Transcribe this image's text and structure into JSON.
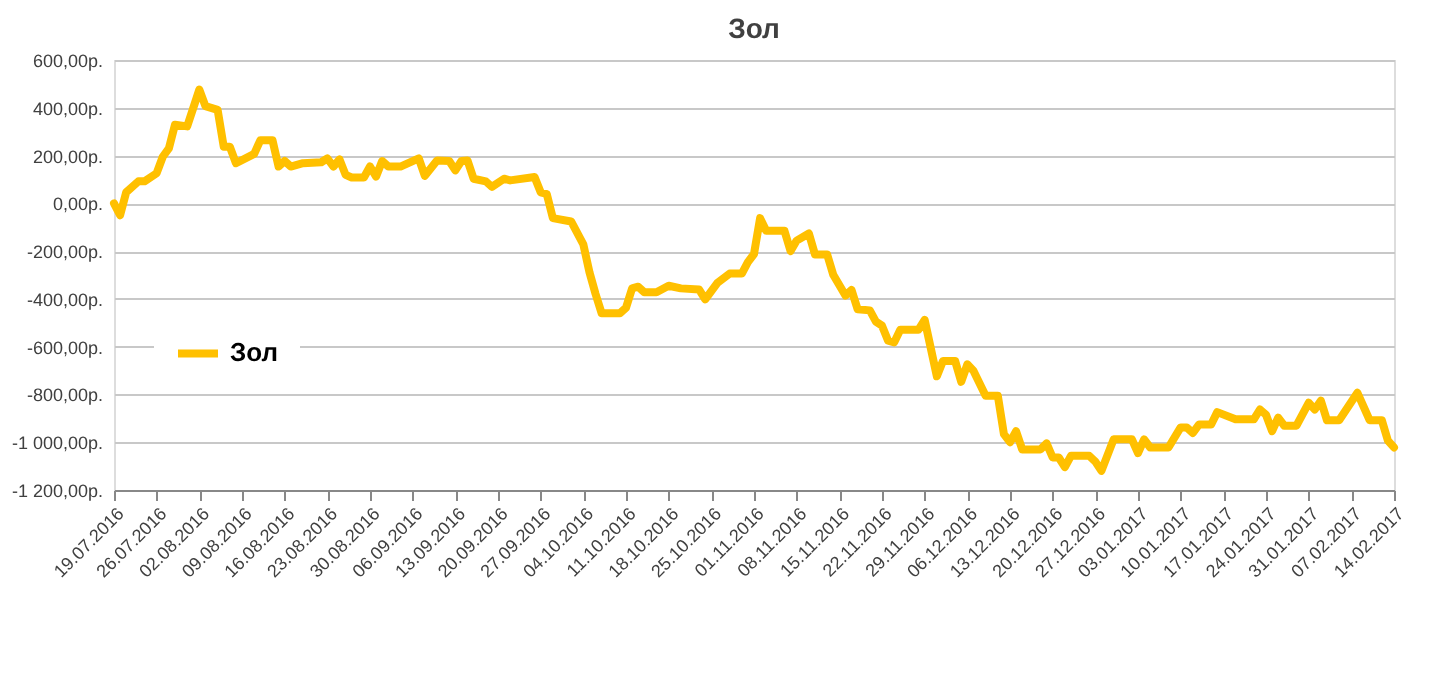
{
  "chart_data": {
    "type": "line",
    "title": "Зол",
    "x": [
      "2016-07-19",
      "2016-07-20",
      "2016-07-21",
      "2016-07-23",
      "2016-07-24",
      "2016-07-26",
      "2016-07-27",
      "2016-07-28",
      "2016-07-29",
      "2016-07-31",
      "2016-08-02",
      "2016-08-03",
      "2016-08-05",
      "2016-08-06",
      "2016-08-07",
      "2016-08-08",
      "2016-08-11",
      "2016-08-12",
      "2016-08-14",
      "2016-08-15",
      "2016-08-16",
      "2016-08-17",
      "2016-08-19",
      "2016-08-22",
      "2016-08-23",
      "2016-08-24",
      "2016-08-25",
      "2016-08-26",
      "2016-08-27",
      "2016-08-29",
      "2016-08-30",
      "2016-08-31",
      "2016-09-01",
      "2016-09-02",
      "2016-09-04",
      "2016-09-07",
      "2016-09-08",
      "2016-09-10",
      "2016-09-12",
      "2016-09-13",
      "2016-09-14",
      "2016-09-15",
      "2016-09-16",
      "2016-09-18",
      "2016-09-19",
      "2016-09-21",
      "2016-09-22",
      "2016-09-26",
      "2016-09-27",
      "2016-09-28",
      "2016-09-29",
      "2016-10-02",
      "2016-10-04",
      "2016-10-05",
      "2016-10-06",
      "2016-10-07",
      "2016-10-10",
      "2016-10-11",
      "2016-10-12",
      "2016-10-13",
      "2016-10-14",
      "2016-10-16",
      "2016-10-18",
      "2016-10-20",
      "2016-10-23",
      "2016-10-24",
      "2016-10-26",
      "2016-10-28",
      "2016-10-30",
      "2016-10-31",
      "2016-11-01",
      "2016-11-02",
      "2016-11-03",
      "2016-11-06",
      "2016-11-07",
      "2016-11-08",
      "2016-11-10",
      "2016-11-11",
      "2016-11-13",
      "2016-11-14",
      "2016-11-16",
      "2016-11-17",
      "2016-11-18",
      "2016-11-20",
      "2016-11-21",
      "2016-11-22",
      "2016-11-23",
      "2016-11-24",
      "2016-11-25",
      "2016-11-28",
      "2016-11-29",
      "2016-12-01",
      "2016-12-02",
      "2016-12-04",
      "2016-12-05",
      "2016-12-06",
      "2016-12-07",
      "2016-12-09",
      "2016-12-11",
      "2016-12-12",
      "2016-12-13",
      "2016-12-14",
      "2016-12-15",
      "2016-12-18",
      "2016-12-19",
      "2016-12-20",
      "2016-12-21",
      "2016-12-22",
      "2016-12-23",
      "2016-12-26",
      "2016-12-27",
      "2016-12-28",
      "2016-12-30",
      "2017-01-02",
      "2017-01-03",
      "2017-01-04",
      "2017-01-05",
      "2017-01-08",
      "2017-01-10",
      "2017-01-11",
      "2017-01-12",
      "2017-01-13",
      "2017-01-15",
      "2017-01-16",
      "2017-01-19",
      "2017-01-22",
      "2017-01-23",
      "2017-01-24",
      "2017-01-25",
      "2017-01-26",
      "2017-01-27",
      "2017-01-29",
      "2017-01-31",
      "2017-02-01",
      "2017-02-02",
      "2017-02-03",
      "2017-02-05",
      "2017-02-08",
      "2017-02-10",
      "2017-02-12",
      "2017-02-13",
      "2017-02-14"
    ],
    "series": [
      {
        "name": "Зол",
        "color": "#ffc000",
        "values": [
          0,
          -50,
          46,
          92,
          92,
          126,
          195,
          230,
          329,
          322,
          476,
          407,
          391,
          237,
          237,
          168,
          207,
          264,
          264,
          154,
          177,
          154,
          168,
          172,
          188,
          154,
          184,
          119,
          108,
          108,
          154,
          112,
          177,
          154,
          154,
          188,
          115,
          179,
          177,
          138,
          177,
          179,
          103,
          92,
          69,
          103,
          96,
          110,
          46,
          39,
          -62,
          -76,
          -172,
          -288,
          -379,
          -460,
          -460,
          -437,
          -356,
          -349,
          -372,
          -372,
          -345,
          -356,
          -361,
          -402,
          -333,
          -294,
          -294,
          -246,
          -212,
          -62,
          -115,
          -115,
          -200,
          -156,
          -126,
          -214,
          -214,
          -299,
          -386,
          -363,
          -443,
          -448,
          -495,
          -512,
          -575,
          -582,
          -529,
          -529,
          -488,
          -724,
          -660,
          -660,
          -747,
          -674,
          -701,
          -805,
          -805,
          -966,
          -1000,
          -954,
          -1030,
          -1030,
          -1005,
          -1064,
          -1064,
          -1104,
          -1057,
          -1057,
          -1081,
          -1120,
          -988,
          -988,
          -1046,
          -988,
          -1022,
          -1022,
          -938,
          -938,
          -961,
          -926,
          -926,
          -874,
          -904,
          -904,
          -863,
          -885,
          -954,
          -897,
          -931,
          -931,
          -835,
          -863,
          -826,
          -908,
          -908,
          -793,
          -908,
          -908,
          -993,
          -1022
        ]
      }
    ],
    "xlim": [
      "2016-07-19",
      "2017-02-14"
    ],
    "xticks": [
      {
        "value": "2016-07-19",
        "label": "19.07.2016"
      },
      {
        "value": "2016-07-26",
        "label": "26.07.2016"
      },
      {
        "value": "2016-08-02",
        "label": "02.08.2016"
      },
      {
        "value": "2016-08-09",
        "label": "09.08.2016"
      },
      {
        "value": "2016-08-16",
        "label": "16.08.2016"
      },
      {
        "value": "2016-08-23",
        "label": "23.08.2016"
      },
      {
        "value": "2016-08-30",
        "label": "30.08.2016"
      },
      {
        "value": "2016-09-06",
        "label": "06.09.2016"
      },
      {
        "value": "2016-09-13",
        "label": "13.09.2016"
      },
      {
        "value": "2016-09-20",
        "label": "20.09.2016"
      },
      {
        "value": "2016-09-27",
        "label": "27.09.2016"
      },
      {
        "value": "2016-10-04",
        "label": "04.10.2016"
      },
      {
        "value": "2016-10-11",
        "label": "11.10.2016"
      },
      {
        "value": "2016-10-18",
        "label": "18.10.2016"
      },
      {
        "value": "2016-10-25",
        "label": "25.10.2016"
      },
      {
        "value": "2016-11-01",
        "label": "01.11.2016"
      },
      {
        "value": "2016-11-08",
        "label": "08.11.2016"
      },
      {
        "value": "2016-11-15",
        "label": "15.11.2016"
      },
      {
        "value": "2016-11-22",
        "label": "22.11.2016"
      },
      {
        "value": "2016-11-29",
        "label": "29.11.2016"
      },
      {
        "value": "2016-12-06",
        "label": "06.12.2016"
      },
      {
        "value": "2016-12-13",
        "label": "13.12.2016"
      },
      {
        "value": "2016-12-20",
        "label": "20.12.2016"
      },
      {
        "value": "2016-12-27",
        "label": "27.12.2016"
      },
      {
        "value": "2017-01-03",
        "label": "03.01.2017"
      },
      {
        "value": "2017-01-10",
        "label": "10.01.2017"
      },
      {
        "value": "2017-01-17",
        "label": "17.01.2017"
      },
      {
        "value": "2017-01-24",
        "label": "24.01.2017"
      },
      {
        "value": "2017-01-31",
        "label": "31.01.2017"
      },
      {
        "value": "2017-02-07",
        "label": "07.02.2017"
      },
      {
        "value": "2017-02-14",
        "label": "14.02.2017"
      }
    ],
    "ylim": [
      -1200,
      600
    ],
    "yticks": [
      {
        "value": 600,
        "label": "600,00р."
      },
      {
        "value": 400,
        "label": "400,00р."
      },
      {
        "value": 200,
        "label": "200,00р."
      },
      {
        "value": 0,
        "label": "0,00р."
      },
      {
        "value": -200,
        "label": "-200,00р."
      },
      {
        "value": -400,
        "label": "-400,00р."
      },
      {
        "value": -600,
        "label": "-600,00р."
      },
      {
        "value": -800,
        "label": "-800,00р."
      },
      {
        "value": -1000,
        "label": "-1 000,00р."
      },
      {
        "value": -1200,
        "label": "-1 200,00р."
      }
    ],
    "grid": "y",
    "legend": "left",
    "marker": "none",
    "line_style": "solid"
  }
}
